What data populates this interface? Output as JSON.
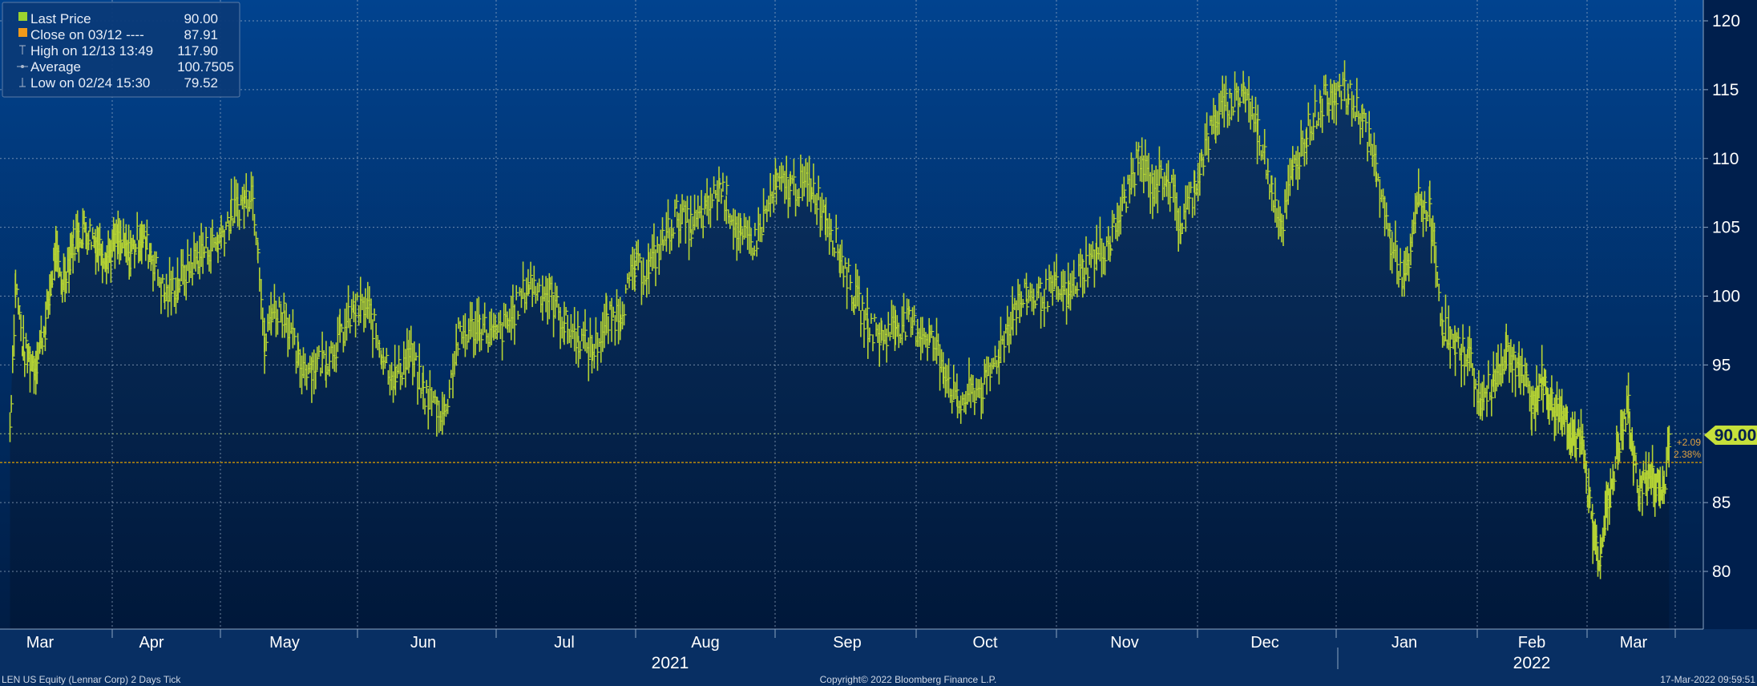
{
  "colors": {
    "background_top": "#01438f",
    "background_bottom": "#001d45",
    "area_top": "#0b3466",
    "area_bottom": "#00183a",
    "price_bars": "#b5d334",
    "grid": "#9db0c8",
    "close_line": "#e0a000",
    "legend_bg": "#0a3a78",
    "last_price_tag": "#c6e03a",
    "bottom_bar": "#082f63"
  },
  "legend": {
    "items": [
      {
        "icon": "green-square-icon",
        "label": "Last Price",
        "value": "90.00"
      },
      {
        "icon": "orange-square-icon",
        "label": "Close on 03/12 ----",
        "value": "87.91"
      },
      {
        "icon": "high-marker-icon",
        "label": "High on 12/13 13:49",
        "value": "117.90"
      },
      {
        "icon": "average-marker-icon",
        "label": "Average",
        "value": "100.7505"
      },
      {
        "icon": "low-marker-icon",
        "label": "Low on 02/24 15:30",
        "value": "79.52"
      }
    ]
  },
  "last_price_tag": "90.00",
  "change": {
    "abs": "+2.09",
    "pct": "2.38%"
  },
  "footer": {
    "left": "LEN US Equity (Lennar Corp) 2 Days Tick",
    "center": "Copyright© 2022 Bloomberg Finance L.P.",
    "right": "17-Mar-2022 09:59:51"
  },
  "chart_data": {
    "type": "line",
    "ylim": [
      75.5,
      121
    ],
    "y_ticks": [
      80,
      85,
      90,
      95,
      100,
      105,
      110,
      115,
      120
    ],
    "x_ticks": [
      {
        "label": "Mar",
        "t": 0.0
      },
      {
        "label": "Apr",
        "t": 1.0
      },
      {
        "label": "May",
        "t": 2.0
      },
      {
        "label": "Jun",
        "t": 3.0
      },
      {
        "label": "Jul",
        "t": 4.0
      },
      {
        "label": "Aug",
        "t": 5.0
      },
      {
        "label": "Sep",
        "t": 6.0
      },
      {
        "label": "Oct",
        "t": 7.0
      },
      {
        "label": "Nov",
        "t": 8.0
      },
      {
        "label": "Dec",
        "t": 9.0
      },
      {
        "label": "Jan",
        "t": 10.0
      },
      {
        "label": "Feb",
        "t": 11.0
      },
      {
        "label": "Mar",
        "t": 12.0
      }
    ],
    "year_labels": [
      {
        "label": "2021",
        "t": 4.75
      },
      {
        "label": "2022",
        "t": 11.0
      }
    ],
    "t_range": [
      -0.27,
      12.35
    ],
    "close_line_value": 87.91,
    "last_price": 90.0,
    "series": [
      {
        "values": [
          [
            -0.27,
            90.5
          ],
          [
            -0.22,
            101
          ],
          [
            -0.15,
            96
          ],
          [
            -0.05,
            95
          ],
          [
            0.05,
            98
          ],
          [
            0.13,
            103
          ],
          [
            0.2,
            101
          ],
          [
            0.3,
            104
          ],
          [
            0.4,
            105
          ],
          [
            0.5,
            104
          ],
          [
            0.6,
            103
          ],
          [
            0.7,
            104
          ],
          [
            0.8,
            103
          ],
          [
            0.9,
            104.5
          ],
          [
            1.0,
            103
          ],
          [
            1.1,
            100
          ],
          [
            1.2,
            101
          ],
          [
            1.35,
            103
          ],
          [
            1.5,
            104
          ],
          [
            1.6,
            106
          ],
          [
            1.7,
            107
          ],
          [
            1.75,
            108
          ],
          [
            1.8,
            104
          ],
          [
            1.85,
            96
          ],
          [
            1.9,
            99
          ],
          [
            2.0,
            99
          ],
          [
            2.1,
            95
          ],
          [
            2.2,
            95
          ],
          [
            2.3,
            95.5
          ],
          [
            2.4,
            97
          ],
          [
            2.5,
            99
          ],
          [
            2.6,
            99
          ],
          [
            2.7,
            96
          ],
          [
            2.8,
            94
          ],
          [
            2.9,
            96
          ],
          [
            3.0,
            93
          ],
          [
            3.1,
            92
          ],
          [
            3.15,
            91.5
          ],
          [
            3.25,
            97
          ],
          [
            3.4,
            98
          ],
          [
            3.5,
            97
          ],
          [
            3.6,
            98
          ],
          [
            3.75,
            101
          ],
          [
            3.9,
            100
          ],
          [
            4.0,
            98
          ],
          [
            4.1,
            97
          ],
          [
            4.2,
            96
          ],
          [
            4.3,
            98
          ],
          [
            4.4,
            99
          ],
          [
            4.5,
            102
          ],
          [
            4.6,
            102
          ],
          [
            4.7,
            104
          ],
          [
            4.8,
            106
          ],
          [
            4.9,
            105
          ],
          [
            5.0,
            106
          ],
          [
            5.1,
            108
          ],
          [
            5.15,
            107
          ],
          [
            5.25,
            104
          ],
          [
            5.35,
            104
          ],
          [
            5.5,
            108
          ],
          [
            5.6,
            108
          ],
          [
            5.75,
            108
          ],
          [
            5.85,
            106
          ],
          [
            5.95,
            103
          ],
          [
            6.05,
            100
          ],
          [
            6.15,
            98
          ],
          [
            6.25,
            97
          ],
          [
            6.35,
            98
          ],
          [
            6.45,
            98
          ],
          [
            6.6,
            97
          ],
          [
            6.7,
            95
          ],
          [
            6.8,
            92
          ],
          [
            6.9,
            93
          ],
          [
            7.0,
            93.5
          ],
          [
            7.1,
            96
          ],
          [
            7.2,
            99
          ],
          [
            7.3,
            100
          ],
          [
            7.4,
            100
          ],
          [
            7.5,
            100.5
          ],
          [
            7.6,
            100
          ],
          [
            7.7,
            102
          ],
          [
            7.8,
            103
          ],
          [
            7.9,
            104
          ],
          [
            8.0,
            107
          ],
          [
            8.1,
            110
          ],
          [
            8.2,
            108
          ],
          [
            8.3,
            109
          ],
          [
            8.4,
            105
          ],
          [
            8.5,
            108
          ],
          [
            8.55,
            110
          ],
          [
            8.65,
            113
          ],
          [
            8.75,
            114
          ],
          [
            8.85,
            115
          ],
          [
            8.95,
            112
          ],
          [
            9.05,
            108
          ],
          [
            9.12,
            105
          ],
          [
            9.2,
            109
          ],
          [
            9.3,
            112
          ],
          [
            9.4,
            114
          ],
          [
            9.5,
            115
          ],
          [
            9.6,
            114.5
          ],
          [
            9.7,
            113
          ],
          [
            9.8,
            109
          ],
          [
            9.9,
            104
          ],
          [
            10.0,
            101
          ],
          [
            10.05,
            103
          ],
          [
            10.1,
            107
          ],
          [
            10.2,
            106
          ],
          [
            10.3,
            98
          ],
          [
            10.4,
            96
          ],
          [
            10.5,
            96
          ],
          [
            10.6,
            92
          ],
          [
            10.7,
            94
          ],
          [
            10.8,
            96
          ],
          [
            10.9,
            95
          ],
          [
            11.0,
            92
          ],
          [
            11.1,
            94
          ],
          [
            11.2,
            92
          ],
          [
            11.3,
            91.5
          ],
          [
            11.4,
            90
          ],
          [
            11.5,
            89
          ],
          [
            11.6,
            83
          ],
          [
            11.65,
            81
          ],
          [
            11.75,
            85
          ],
          [
            11.85,
            89
          ],
          [
            11.95,
            92
          ],
          [
            12.0,
            88
          ],
          [
            12.05,
            86
          ],
          [
            12.15,
            87
          ],
          [
            12.25,
            86
          ],
          [
            12.3,
            86
          ],
          [
            12.35,
            90
          ]
        ]
      }
    ]
  }
}
